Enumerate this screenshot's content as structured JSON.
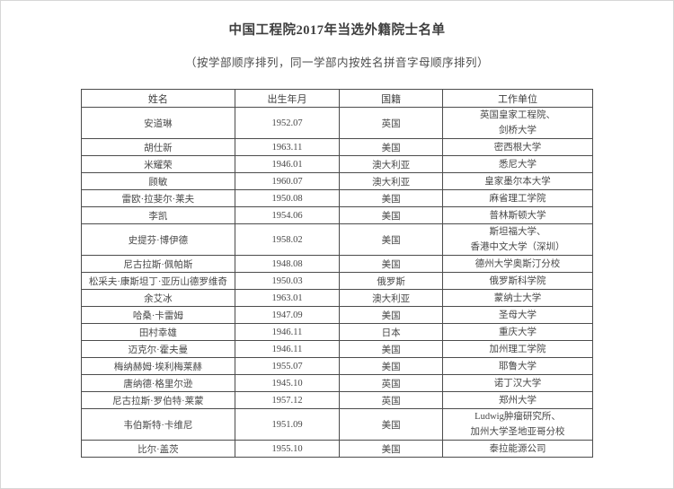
{
  "title": "中国工程院2017年当选外籍院士名单",
  "subtitle": "（按学部顺序排列，同一学部内按姓名拼音字母顺序排列）",
  "colors": {
    "table_border": "#4c4c4c",
    "text": "#454545",
    "page_frame": "#d6d6d6"
  },
  "table": {
    "headers": [
      "姓名",
      "出生年月",
      "国籍",
      "工作单位"
    ],
    "rows": [
      {
        "name": "安道琳",
        "birth": "1952.07",
        "nationality": "英国",
        "employer": [
          "英国皇家工程院、",
          "剑桥大学"
        ]
      },
      {
        "name": "胡仕新",
        "birth": "1963.11",
        "nationality": "美国",
        "employer": [
          "密西根大学"
        ]
      },
      {
        "name": "米耀荣",
        "birth": "1946.01",
        "nationality": "澳大利亚",
        "employer": [
          "悉尼大学"
        ]
      },
      {
        "name": "顾敏",
        "birth": "1960.07",
        "nationality": "澳大利亚",
        "employer": [
          "皇家墨尔本大学"
        ]
      },
      {
        "name": "雷欧·拉斐尔·莱夫",
        "birth": "1950.08",
        "nationality": "美国",
        "employer": [
          "麻省理工学院"
        ]
      },
      {
        "name": "李凯",
        "birth": "1954.06",
        "nationality": "美国",
        "employer": [
          "普林斯顿大学"
        ]
      },
      {
        "name": "史提芬·博伊德",
        "birth": "1958.02",
        "nationality": "美国",
        "employer": [
          "斯坦福大学、",
          "香港中文大学（深圳）"
        ]
      },
      {
        "name": "尼古拉斯·佩帕斯",
        "birth": "1948.08",
        "nationality": "美国",
        "employer": [
          "德州大学奥斯汀分校"
        ]
      },
      {
        "name": "松采夫·康斯坦丁·亚历山德罗维奇",
        "birth": "1950.03",
        "nationality": "俄罗斯",
        "employer": [
          "俄罗斯科学院"
        ]
      },
      {
        "name": "余艾冰",
        "birth": "1963.01",
        "nationality": "澳大利亚",
        "employer": [
          "蒙纳士大学"
        ]
      },
      {
        "name": "哈桑·卡雷姆",
        "birth": "1947.09",
        "nationality": "美国",
        "employer": [
          "圣母大学"
        ]
      },
      {
        "name": "田村幸雄",
        "birth": "1946.11",
        "nationality": "日本",
        "employer": [
          "重庆大学"
        ]
      },
      {
        "name": "迈克尔·霍夫曼",
        "birth": "1946.11",
        "nationality": "美国",
        "employer": [
          "加州理工学院"
        ]
      },
      {
        "name": "梅纳赫姆·埃利梅莱赫",
        "birth": "1955.07",
        "nationality": "美国",
        "employer": [
          "耶鲁大学"
        ]
      },
      {
        "name": "唐纳德·格里尔逊",
        "birth": "1945.10",
        "nationality": "英国",
        "employer": [
          "诺丁汉大学"
        ]
      },
      {
        "name": "尼古拉斯·罗伯特·莱蒙",
        "birth": "1957.12",
        "nationality": "英国",
        "employer": [
          "郑州大学"
        ]
      },
      {
        "name": "韦伯斯特·卡维尼",
        "birth": "1951.09",
        "nationality": "美国",
        "employer": [
          "Ludwig肿瘤研究所、",
          "加州大学圣地亚哥分校"
        ]
      },
      {
        "name": "比尔·盖茨",
        "birth": "1955.10",
        "nationality": "美国",
        "employer": [
          "泰拉能源公司"
        ]
      }
    ]
  }
}
